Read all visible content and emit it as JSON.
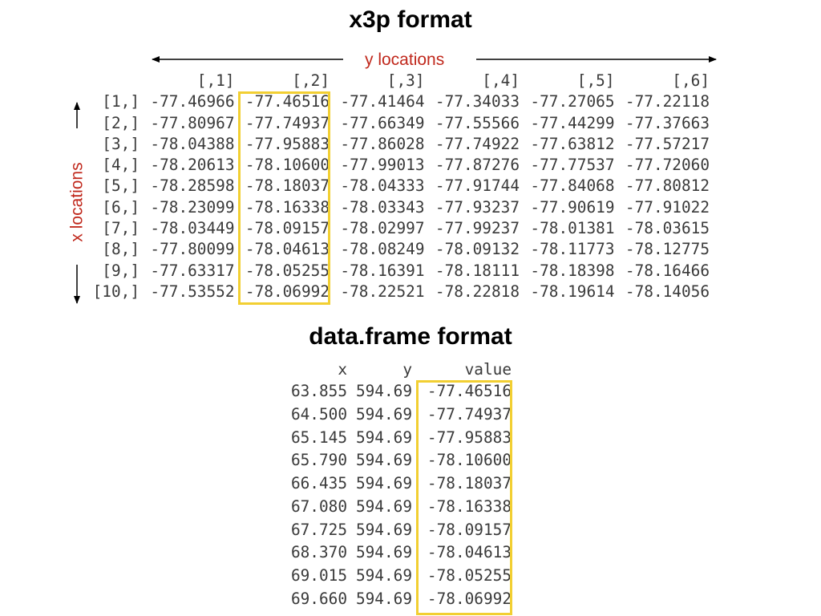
{
  "colors": {
    "label_red": "#c0281c",
    "highlight_yellow": "#f2cf32",
    "text_gray": "#3a3a3a"
  },
  "x3p": {
    "title": "x3p format",
    "y_axis_label": "y locations",
    "x_axis_label": "x locations",
    "col_headers": [
      "[,1]",
      "[,2]",
      "[,3]",
      "[,4]",
      "[,5]",
      "[,6]"
    ],
    "rows": [
      {
        "label": "[1,]",
        "values": [
          "-77.46966",
          "-77.46516",
          "-77.41464",
          "-77.34033",
          "-77.27065",
          "-77.22118"
        ]
      },
      {
        "label": "[2,]",
        "values": [
          "-77.80967",
          "-77.74937",
          "-77.66349",
          "-77.55566",
          "-77.44299",
          "-77.37663"
        ]
      },
      {
        "label": "[3,]",
        "values": [
          "-78.04388",
          "-77.95883",
          "-77.86028",
          "-77.74922",
          "-77.63812",
          "-77.57217"
        ]
      },
      {
        "label": "[4,]",
        "values": [
          "-78.20613",
          "-78.10600",
          "-77.99013",
          "-77.87276",
          "-77.77537",
          "-77.72060"
        ]
      },
      {
        "label": "[5,]",
        "values": [
          "-78.28598",
          "-78.18037",
          "-78.04333",
          "-77.91744",
          "-77.84068",
          "-77.80812"
        ]
      },
      {
        "label": "[6,]",
        "values": [
          "-78.23099",
          "-78.16338",
          "-78.03343",
          "-77.93237",
          "-77.90619",
          "-77.91022"
        ]
      },
      {
        "label": "[7,]",
        "values": [
          "-78.03449",
          "-78.09157",
          "-78.02997",
          "-77.99237",
          "-78.01381",
          "-78.03615"
        ]
      },
      {
        "label": "[8,]",
        "values": [
          "-77.80099",
          "-78.04613",
          "-78.08249",
          "-78.09132",
          "-78.11773",
          "-78.12775"
        ]
      },
      {
        "label": "[9,]",
        "values": [
          "-77.63317",
          "-78.05255",
          "-78.16391",
          "-78.18111",
          "-78.18398",
          "-78.16466"
        ]
      },
      {
        "label": "[10,]",
        "values": [
          "-77.53552",
          "-78.06992",
          "-78.22521",
          "-78.22818",
          "-78.19614",
          "-78.14056"
        ]
      }
    ]
  },
  "dataframe": {
    "title": "data.frame format",
    "col_headers": [
      "x",
      "y",
      "value"
    ],
    "rows": [
      [
        "63.855",
        "594.69",
        "-77.46516"
      ],
      [
        "64.500",
        "594.69",
        "-77.74937"
      ],
      [
        "65.145",
        "594.69",
        "-77.95883"
      ],
      [
        "65.790",
        "594.69",
        "-78.10600"
      ],
      [
        "66.435",
        "594.69",
        "-78.18037"
      ],
      [
        "67.080",
        "594.69",
        "-78.16338"
      ],
      [
        "67.725",
        "594.69",
        "-78.09157"
      ],
      [
        "68.370",
        "594.69",
        "-78.04613"
      ],
      [
        "69.015",
        "594.69",
        "-78.05255"
      ],
      [
        "69.660",
        "594.69",
        "-78.06992"
      ]
    ]
  }
}
